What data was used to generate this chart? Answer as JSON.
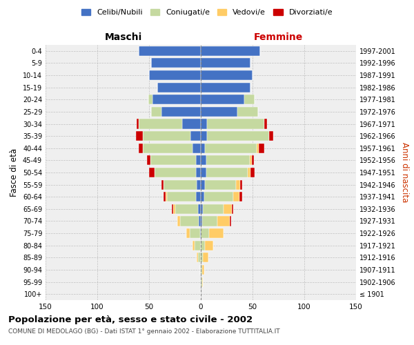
{
  "age_groups": [
    "100+",
    "95-99",
    "90-94",
    "85-89",
    "80-84",
    "75-79",
    "70-74",
    "65-69",
    "60-64",
    "55-59",
    "50-54",
    "45-49",
    "40-44",
    "35-39",
    "30-34",
    "25-29",
    "20-24",
    "15-19",
    "10-14",
    "5-9",
    "0-4"
  ],
  "birth_years": [
    "≤ 1901",
    "1902-1906",
    "1907-1911",
    "1912-1916",
    "1917-1921",
    "1922-1926",
    "1927-1931",
    "1932-1936",
    "1937-1941",
    "1942-1946",
    "1947-1951",
    "1952-1956",
    "1957-1961",
    "1962-1966",
    "1967-1971",
    "1972-1976",
    "1977-1981",
    "1982-1986",
    "1987-1991",
    "1992-1996",
    "1997-2001"
  ],
  "males": {
    "celibe": [
      0,
      0,
      0,
      0,
      0,
      1,
      2,
      3,
      5,
      4,
      5,
      5,
      8,
      10,
      18,
      38,
      47,
      42,
      50,
      48,
      60
    ],
    "coniugato": [
      0,
      0,
      1,
      3,
      6,
      10,
      18,
      22,
      28,
      32,
      40,
      44,
      48,
      46,
      42,
      10,
      4,
      0,
      0,
      0,
      0
    ],
    "vedovo": [
      0,
      0,
      0,
      1,
      2,
      3,
      3,
      2,
      1,
      0,
      0,
      0,
      0,
      0,
      0,
      0,
      0,
      0,
      0,
      0,
      0
    ],
    "divorziato": [
      0,
      0,
      0,
      0,
      0,
      0,
      0,
      1,
      2,
      2,
      5,
      3,
      4,
      7,
      2,
      0,
      0,
      0,
      0,
      0,
      0
    ]
  },
  "females": {
    "nubile": [
      0,
      0,
      0,
      0,
      0,
      0,
      1,
      2,
      3,
      4,
      5,
      5,
      4,
      6,
      6,
      35,
      42,
      48,
      50,
      48,
      57
    ],
    "coniugata": [
      0,
      1,
      1,
      2,
      4,
      8,
      15,
      20,
      28,
      30,
      40,
      42,
      50,
      60,
      55,
      20,
      10,
      0,
      0,
      0,
      0
    ],
    "vedova": [
      0,
      1,
      2,
      5,
      8,
      14,
      12,
      8,
      6,
      4,
      3,
      2,
      2,
      0,
      0,
      0,
      0,
      0,
      0,
      0,
      0
    ],
    "divorziata": [
      0,
      0,
      0,
      0,
      0,
      0,
      1,
      1,
      3,
      2,
      4,
      2,
      5,
      4,
      3,
      0,
      0,
      0,
      0,
      0,
      0
    ]
  },
  "colors": {
    "celibe": "#4472C4",
    "coniugato": "#c5d9a0",
    "vedovo": "#ffcc66",
    "divorziato": "#cc0000"
  },
  "xlim": 150,
  "title": "Popolazione per età, sesso e stato civile - 2002",
  "subtitle": "COMUNE DI MEDOLAGO (BG) - Dati ISTAT 1° gennaio 2002 - Elaborazione TUTTITALIA.IT",
  "ylabel_left": "Fasce di età",
  "ylabel_right": "Anni di nascita",
  "xlabel_maschi": "Maschi",
  "xlabel_femmine": "Femmine",
  "legend_labels": [
    "Celibi/Nubili",
    "Coniugati/e",
    "Vedovi/e",
    "Divorziati/e"
  ],
  "bg_color": "#ffffff",
  "plot_bg_color": "#efefef"
}
